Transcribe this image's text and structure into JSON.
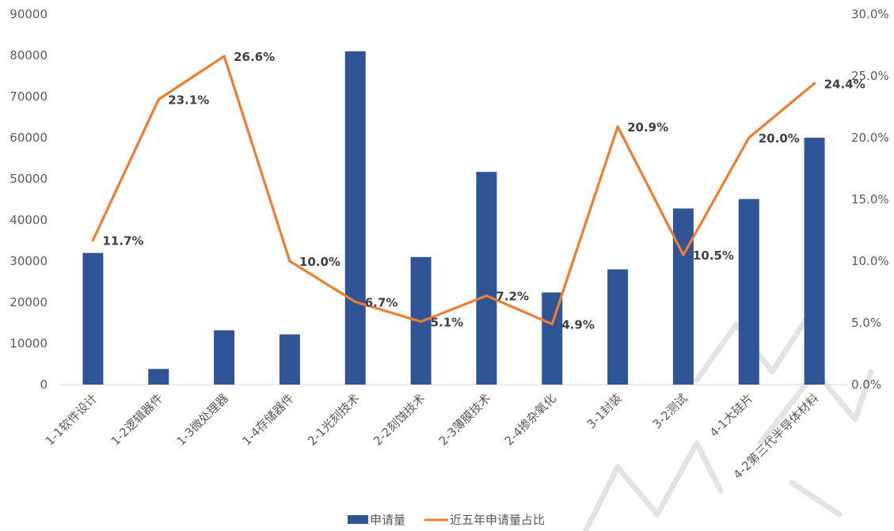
{
  "chart_data": {
    "type": "bar",
    "categories": [
      "1-1软件设计",
      "1-2逻辑器件",
      "1-3微处理器",
      "1-4存储器件",
      "2-1光刻技术",
      "2-2刻蚀技术",
      "2-3薄膜技术",
      "2-4掺杂氧化",
      "3-1封装",
      "3-2测试",
      "4-1大硅片",
      "4-2第三代半导体材料"
    ],
    "series": [
      {
        "name": "申请量",
        "type": "bar",
        "axis": "left",
        "color": "#2f5597",
        "values": [
          32000,
          3800,
          13200,
          12200,
          81000,
          31000,
          51700,
          22400,
          28000,
          42800,
          45100,
          60000
        ]
      },
      {
        "name": "近五年申请量占比",
        "type": "line",
        "axis": "right",
        "color": "#ed7d31",
        "values": [
          11.7,
          23.1,
          26.6,
          10.0,
          6.7,
          5.1,
          7.2,
          4.9,
          20.9,
          10.5,
          20.0,
          24.4
        ],
        "data_labels": [
          "11.7%",
          "23.1%",
          "26.6%",
          "10.0%",
          "6.7%",
          "5.1%",
          "7.2%",
          "4.9%",
          "20.9%",
          "10.5%",
          "20.0%",
          "24.4%"
        ]
      }
    ],
    "y_left": {
      "min": 0,
      "max": 90000,
      "ticks": [
        "0",
        "10000",
        "20000",
        "30000",
        "40000",
        "50000",
        "60000",
        "70000",
        "80000",
        "90000"
      ]
    },
    "y_right": {
      "min": 0,
      "max": 30,
      "ticks": [
        "0.0%",
        "5.0%",
        "10.0%",
        "15.0%",
        "20.0%",
        "25.0%",
        "30.0%"
      ]
    },
    "grid": false,
    "legend_position": "bottom-center"
  }
}
